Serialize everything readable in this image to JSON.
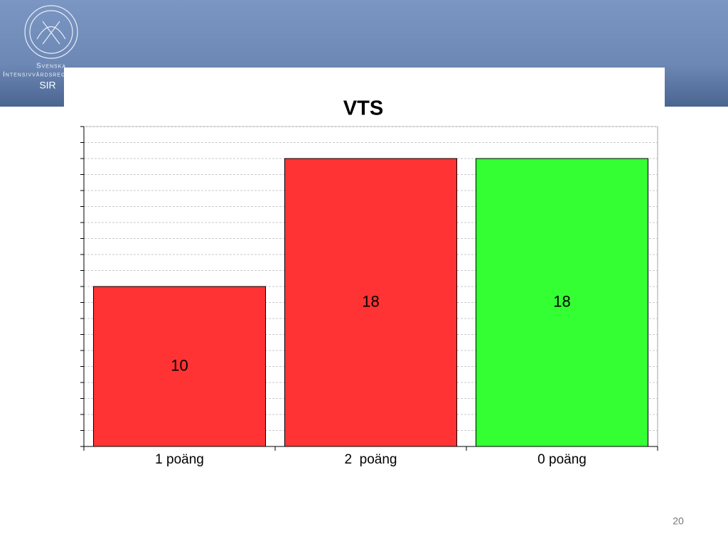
{
  "slide": {
    "logo_line1": "Svenska",
    "logo_line2": "Intensivvårdsregistret",
    "logo_abbr": "SIR",
    "page_number": "20"
  },
  "chart_data": {
    "type": "bar",
    "title": "VTS",
    "categories": [
      "1 poäng",
      "2  poäng",
      "0 poäng"
    ],
    "values": [
      10,
      18,
      18
    ],
    "colors": [
      "#ff3333",
      "#ff3333",
      "#33ff33"
    ],
    "ylim": [
      0,
      20
    ],
    "yticks": [
      0,
      1,
      2,
      3,
      4,
      5,
      6,
      7,
      8,
      9,
      10,
      11,
      12,
      13,
      14,
      15,
      16,
      17,
      18,
      19,
      20
    ],
    "grid": true
  }
}
